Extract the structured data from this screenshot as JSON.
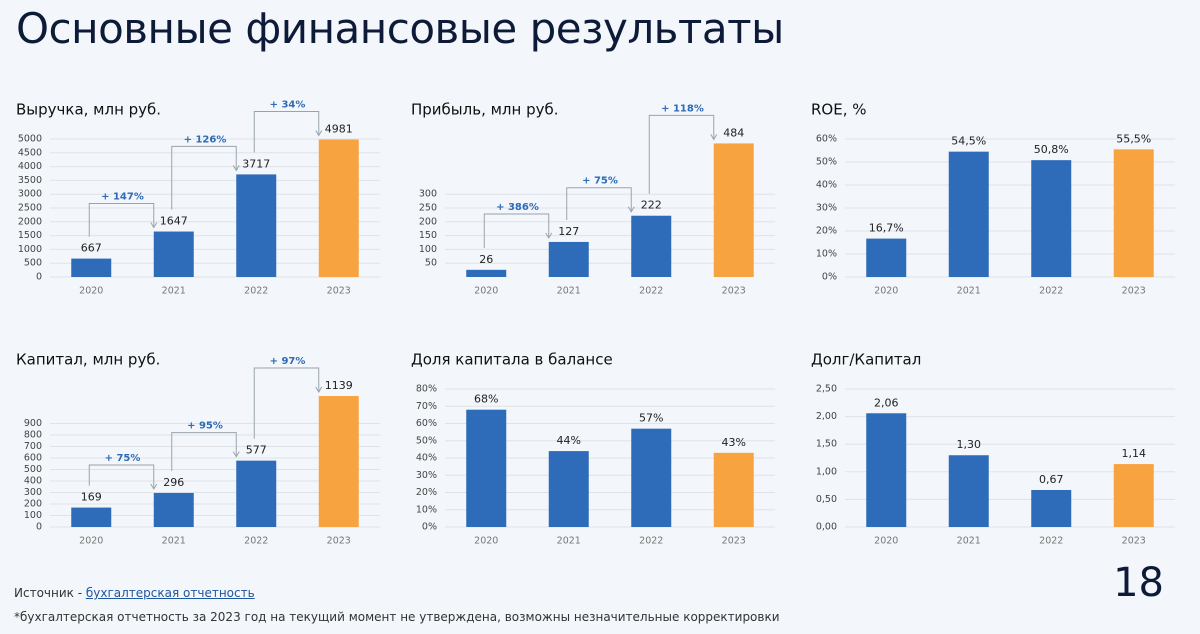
{
  "title": "Основные финансовые результаты",
  "source": {
    "prefix": "Источник -",
    "link": "бухгалтерская отчетность"
  },
  "footnote": "*бухгалтерская отчетность за 2023 год на текущий момент не утверждена, возможны незначительные корректировки",
  "page": "18",
  "chart_data": [
    {
      "type": "bar",
      "title": "Выручка, млн руб.",
      "categories": [
        "2020",
        "2021",
        "2022",
        "2023"
      ],
      "values": [
        667,
        1647,
        3717,
        4981
      ],
      "colors": [
        "#2e6bb8",
        "#2e6bb8",
        "#2e6bb8",
        "#f7a440"
      ],
      "annotations": [
        "+ 147%",
        "+ 126%",
        "+ 34%"
      ],
      "ylim": [
        0,
        5000
      ],
      "yticks": [
        0,
        500,
        1000,
        1500,
        2000,
        2500,
        3000,
        3500,
        4000,
        4500,
        5000
      ],
      "grid": true
    },
    {
      "type": "bar",
      "title": "Прибыль, млн руб.",
      "categories": [
        "2020",
        "2021",
        "2022",
        "2023"
      ],
      "values": [
        26,
        127,
        222,
        484
      ],
      "colors": [
        "#2e6bb8",
        "#2e6bb8",
        "#2e6bb8",
        "#f7a440"
      ],
      "annotations": [
        "+ 386%",
        "+ 75%",
        "+ 118%"
      ],
      "ylim": [
        0,
        500
      ],
      "yticks": [
        50,
        100,
        150,
        200,
        250,
        300
      ],
      "grid": true
    },
    {
      "type": "bar",
      "title": "ROE, %",
      "categories": [
        "2020",
        "2021",
        "2022",
        "2023"
      ],
      "values": [
        16.7,
        54.5,
        50.8,
        55.5
      ],
      "value_labels": [
        "16,7%",
        "54,5%",
        "50,8%",
        "55,5%"
      ],
      "colors": [
        "#2e6bb8",
        "#2e6bb8",
        "#2e6bb8",
        "#f7a440"
      ],
      "ylim": [
        0,
        60
      ],
      "yticks": [
        {
          "value": 0,
          "label": "0%"
        },
        {
          "value": 10,
          "label": "10%"
        },
        {
          "value": 20,
          "label": "20%"
        },
        {
          "value": 30,
          "label": "30%"
        },
        {
          "value": 40,
          "label": "40%"
        },
        {
          "value": 50,
          "label": "50%"
        },
        {
          "value": 60,
          "label": "60%"
        }
      ],
      "grid": true
    },
    {
      "type": "bar",
      "title": "Капитал, млн руб.",
      "categories": [
        "2020",
        "2021",
        "2022",
        "2023"
      ],
      "values": [
        169,
        296,
        577,
        1139
      ],
      "colors": [
        "#2e6bb8",
        "#2e6bb8",
        "#2e6bb8",
        "#f7a440"
      ],
      "annotations": [
        "+ 75%",
        "+ 95%",
        "+ 97%"
      ],
      "ylim": [
        0,
        1200
      ],
      "yticks": [
        0,
        100,
        200,
        300,
        400,
        500,
        600,
        700,
        800,
        900
      ],
      "grid": true
    },
    {
      "type": "bar",
      "title": "Доля капитала в балансе",
      "categories": [
        "2020",
        "2021",
        "2022",
        "2023"
      ],
      "values": [
        68,
        44,
        57,
        43
      ],
      "value_labels": [
        "68%",
        "44%",
        "57%",
        "43%"
      ],
      "colors": [
        "#2e6bb8",
        "#2e6bb8",
        "#2e6bb8",
        "#f7a440"
      ],
      "ylim": [
        0,
        80
      ],
      "yticks": [
        {
          "value": 0,
          "label": "0%"
        },
        {
          "value": 10,
          "label": "10%"
        },
        {
          "value": 20,
          "label": "20%"
        },
        {
          "value": 30,
          "label": "30%"
        },
        {
          "value": 40,
          "label": "40%"
        },
        {
          "value": 50,
          "label": "50%"
        },
        {
          "value": 60,
          "label": "60%"
        },
        {
          "value": 70,
          "label": "70%"
        },
        {
          "value": 80,
          "label": "80%"
        }
      ],
      "grid": true
    },
    {
      "type": "bar",
      "title": "Долг/Капитал",
      "categories": [
        "2020",
        "2021",
        "2022",
        "2023"
      ],
      "values": [
        2.06,
        1.3,
        0.67,
        1.14
      ],
      "value_labels": [
        "2,06",
        "1,30",
        "0,67",
        "1,14"
      ],
      "colors": [
        "#2e6bb8",
        "#2e6bb8",
        "#2e6bb8",
        "#f7a440"
      ],
      "ylim": [
        0,
        2.5
      ],
      "yticks": [
        {
          "value": 0,
          "label": "0,00"
        },
        {
          "value": 0.5,
          "label": "0,50"
        },
        {
          "value": 1,
          "label": "1,00"
        },
        {
          "value": 1.5,
          "label": "1,50"
        },
        {
          "value": 2,
          "label": "2,00"
        },
        {
          "value": 2.5,
          "label": "2,50"
        }
      ],
      "grid": true
    }
  ]
}
